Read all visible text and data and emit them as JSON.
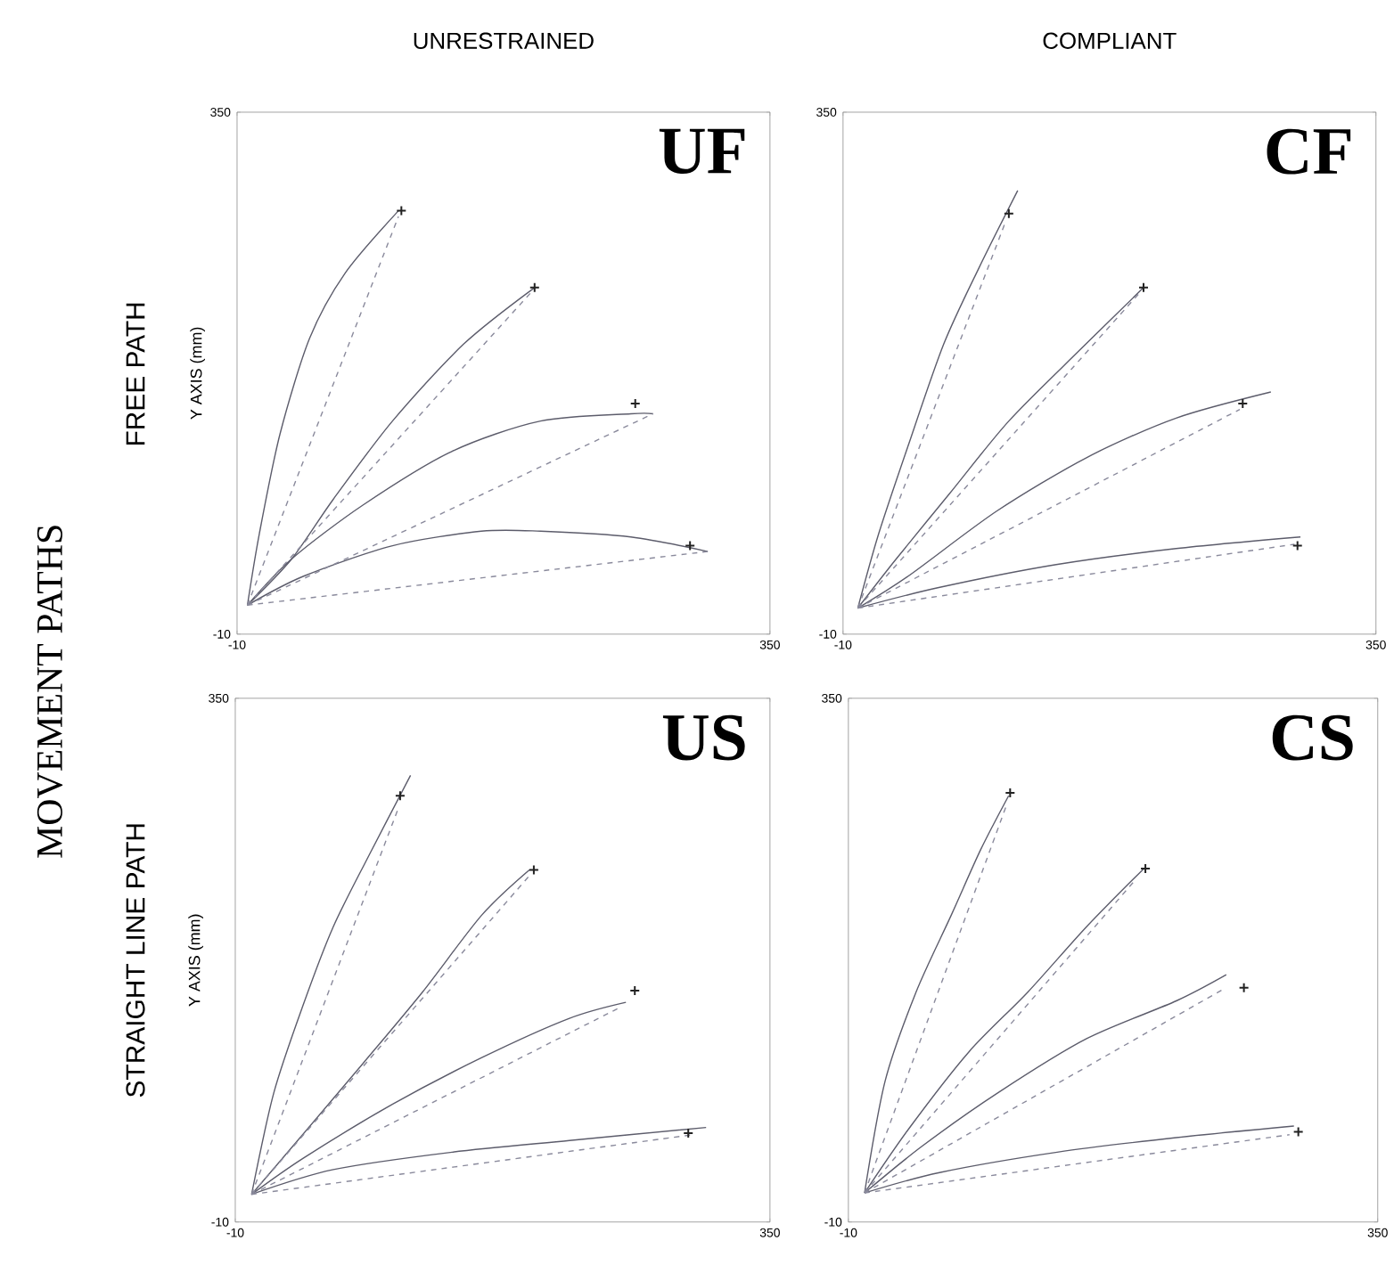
{
  "chart_data": [
    {
      "type": "line",
      "title": "UNRESTRAINED",
      "ylabel": "Y AXIS (mm)",
      "annotations": [
        "UF",
        "FREE PATH",
        "MOVEMENT PATHS"
      ],
      "xlim": [
        -10,
        350
      ],
      "ylim": [
        -10,
        350
      ],
      "xticks": [
        -10,
        350
      ],
      "yticks": [
        -10,
        350
      ],
      "series": [
        {
          "type": "line",
          "line_style": "solid",
          "color": "#5c5c6b",
          "x": [
            -3,
            5,
            19,
            39,
            63,
            99
          ],
          "values": [
            10,
            59,
            128,
            194,
            239,
            282
          ]
        },
        {
          "type": "line",
          "line_style": "solid",
          "color": "#5c5c6b",
          "x": [
            -3,
            27,
            55,
            95,
            143,
            191
          ],
          "values": [
            10,
            42,
            83,
            137,
            190,
            229
          ]
        },
        {
          "type": "line",
          "line_style": "solid",
          "color": "#5c5c6b",
          "x": [
            -3,
            27,
            75,
            135,
            195,
            256,
            271
          ],
          "values": [
            10,
            42,
            79,
            116,
            137,
            142,
            142
          ]
        },
        {
          "type": "line",
          "line_style": "solid",
          "color": "#5c5c6b",
          "x": [
            -3,
            35,
            95,
            155,
            195,
            256,
            308
          ],
          "values": [
            10,
            30,
            51,
            61,
            61,
            57,
            47
          ]
        },
        {
          "type": "line",
          "line_style": "dashed",
          "color": "#8a8a9c",
          "x": [
            -3,
            99
          ],
          "values": [
            10,
            278
          ]
        },
        {
          "type": "line",
          "line_style": "dashed",
          "color": "#8a8a9c",
          "x": [
            -3,
            188
          ],
          "values": [
            10,
            225
          ]
        },
        {
          "type": "line",
          "line_style": "dashed",
          "color": "#8a8a9c",
          "x": [
            -3,
            271
          ],
          "values": [
            10,
            142
          ]
        },
        {
          "type": "line",
          "line_style": "dashed",
          "color": "#8a8a9c",
          "x": [
            -3,
            308
          ],
          "values": [
            10,
            47
          ]
        },
        {
          "type": "scatter",
          "marker": "cross",
          "color": "#222222",
          "x": [
            101,
            191,
            259,
            296
          ],
          "values": [
            282,
            229,
            149,
            51
          ]
        }
      ]
    },
    {
      "type": "line",
      "title": "COMPLIANT",
      "annotations": [
        "CF"
      ],
      "xlim": [
        -10,
        350
      ],
      "ylim": [
        -10,
        350
      ],
      "xticks": [
        -10,
        350
      ],
      "yticks": [
        -10,
        350
      ],
      "series": [
        {
          "type": "line",
          "line_style": "solid",
          "color": "#5c5c6b",
          "x": [
            0,
            14,
            34,
            58,
            82,
            108
          ],
          "values": [
            8,
            59,
            120,
            190,
            243,
            296
          ]
        },
        {
          "type": "line",
          "line_style": "solid",
          "color": "#5c5c6b",
          "x": [
            0,
            26,
            62,
            102,
            150,
            193
          ],
          "values": [
            8,
            42,
            87,
            137,
            186,
            229
          ]
        },
        {
          "type": "line",
          "line_style": "solid",
          "color": "#5c5c6b",
          "x": [
            0,
            34,
            94,
            155,
            215,
            279
          ],
          "values": [
            8,
            30,
            75,
            112,
            139,
            157
          ]
        },
        {
          "type": "line",
          "line_style": "solid",
          "color": "#5c5c6b",
          "x": [
            0,
            54,
            134,
            215,
            299
          ],
          "values": [
            8,
            22,
            38,
            49,
            57
          ]
        },
        {
          "type": "line",
          "line_style": "dashed",
          "color": "#8a8a9c",
          "x": [
            0,
            100
          ],
          "values": [
            8,
            275
          ]
        },
        {
          "type": "line",
          "line_style": "dashed",
          "color": "#8a8a9c",
          "x": [
            0,
            190
          ],
          "values": [
            8,
            225
          ]
        },
        {
          "type": "line",
          "line_style": "dashed",
          "color": "#8a8a9c",
          "x": [
            0,
            258
          ],
          "values": [
            8,
            145
          ]
        },
        {
          "type": "line",
          "line_style": "dashed",
          "color": "#8a8a9c",
          "x": [
            0,
            295
          ],
          "values": [
            8,
            52
          ]
        },
        {
          "type": "scatter",
          "marker": "cross",
          "color": "#222222",
          "x": [
            102,
            193,
            260,
            297
          ],
          "values": [
            280,
            229,
            149,
            51
          ]
        }
      ]
    },
    {
      "type": "line",
      "ylabel": "Y AXIS (mm)",
      "annotations": [
        "US",
        "STRAIGHT LINE PATH"
      ],
      "xlim": [
        -10,
        350
      ],
      "ylim": [
        -10,
        350
      ],
      "xticks": [
        -10,
        350
      ],
      "yticks": [
        -10,
        350
      ],
      "series": [
        {
          "type": "line",
          "line_style": "solid",
          "color": "#5c5c6b",
          "x": [
            1,
            16,
            36,
            56,
            80,
            108
          ],
          "values": [
            9,
            79,
            140,
            193,
            242,
            297
          ]
        },
        {
          "type": "line",
          "line_style": "solid",
          "color": "#5c5c6b",
          "x": [
            1,
            32,
            76,
            116,
            156,
            188
          ],
          "values": [
            9,
            46,
            99,
            148,
            201,
            232
          ]
        },
        {
          "type": "line",
          "line_style": "solid",
          "color": "#5c5c6b",
          "x": [
            1,
            36,
            96,
            156,
            215,
            253
          ],
          "values": [
            9,
            34,
            71,
            103,
            130,
            141
          ]
        },
        {
          "type": "line",
          "line_style": "solid",
          "color": "#5c5c6b",
          "x": [
            1,
            56,
            136,
            215,
            307
          ],
          "values": [
            9,
            26,
            38,
            46,
            55
          ]
        },
        {
          "type": "line",
          "line_style": "dashed",
          "color": "#8a8a9c",
          "x": [
            1,
            100
          ],
          "values": [
            9,
            275
          ]
        },
        {
          "type": "line",
          "line_style": "dashed",
          "color": "#8a8a9c",
          "x": [
            1,
            188
          ],
          "values": [
            9,
            228
          ]
        },
        {
          "type": "line",
          "line_style": "dashed",
          "color": "#8a8a9c",
          "x": [
            1,
            250
          ],
          "values": [
            9,
            138
          ]
        },
        {
          "type": "line",
          "line_style": "dashed",
          "color": "#8a8a9c",
          "x": [
            1,
            298
          ],
          "values": [
            9,
            50
          ]
        },
        {
          "type": "scatter",
          "marker": "cross",
          "color": "#222222",
          "x": [
            101,
            191,
            259,
            295
          ],
          "values": [
            283,
            232,
            149,
            51
          ]
        }
      ]
    },
    {
      "type": "line",
      "annotations": [
        "CS"
      ],
      "xlim": [
        -10,
        350
      ],
      "ylim": [
        -10,
        350
      ],
      "xticks": [
        -10,
        350
      ],
      "yticks": [
        -10,
        350
      ],
      "series": [
        {
          "type": "line",
          "line_style": "solid",
          "color": "#5c5c6b",
          "x": [
            1,
            15,
            36,
            60,
            80,
            99
          ],
          "values": [
            10,
            87,
            148,
            201,
            246,
            283
          ]
        },
        {
          "type": "line",
          "line_style": "solid",
          "color": "#5c5c6b",
          "x": [
            1,
            31,
            72,
            112,
            152,
            191
          ],
          "values": [
            10,
            54,
            107,
            148,
            193,
            233
          ]
        },
        {
          "type": "line",
          "line_style": "solid",
          "color": "#5c5c6b",
          "x": [
            1,
            40,
            92,
            152,
            213,
            247
          ],
          "values": [
            10,
            42,
            79,
            116,
            142,
            160
          ]
        },
        {
          "type": "line",
          "line_style": "solid",
          "color": "#5c5c6b",
          "x": [
            1,
            52,
            132,
            213,
            293
          ],
          "values": [
            10,
            24,
            38,
            48,
            56
          ]
        },
        {
          "type": "line",
          "line_style": "dashed",
          "color": "#8a8a9c",
          "x": [
            1,
            97
          ],
          "values": [
            10,
            275
          ]
        },
        {
          "type": "line",
          "line_style": "dashed",
          "color": "#8a8a9c",
          "x": [
            1,
            185
          ],
          "values": [
            10,
            225
          ]
        },
        {
          "type": "line",
          "line_style": "dashed",
          "color": "#8a8a9c",
          "x": [
            1,
            245
          ],
          "values": [
            10,
            150
          ]
        },
        {
          "type": "line",
          "line_style": "dashed",
          "color": "#8a8a9c",
          "x": [
            1,
            290
          ],
          "values": [
            10,
            50
          ]
        },
        {
          "type": "scatter",
          "marker": "cross",
          "color": "#222222",
          "x": [
            100,
            192,
            259,
            296
          ],
          "values": [
            285,
            233,
            151,
            52
          ]
        }
      ]
    }
  ]
}
